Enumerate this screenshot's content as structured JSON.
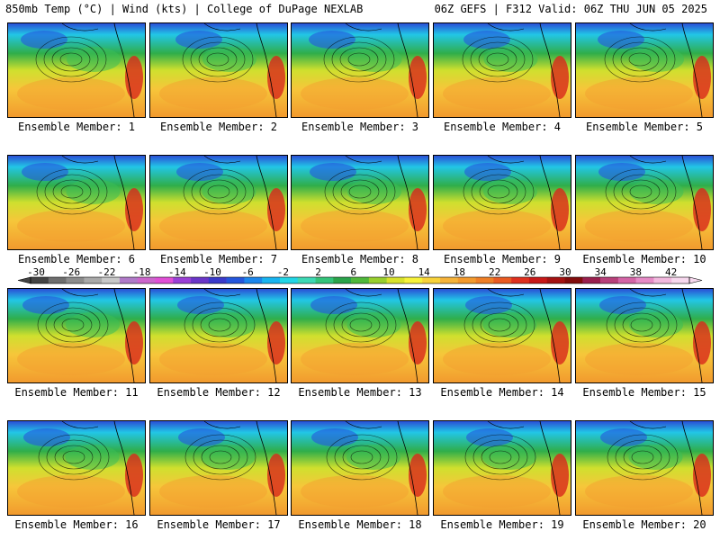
{
  "header": {
    "left": "850mb Temp (°C) | Wind (kts) | College of DuPage NEXLAB",
    "right": "06Z GEFS | F312 Valid: 06Z THU JUN 05 2025"
  },
  "panels": [
    {
      "label": "Ensemble Member: 1"
    },
    {
      "label": "Ensemble Member: 2"
    },
    {
      "label": "Ensemble Member: 3"
    },
    {
      "label": "Ensemble Member: 4"
    },
    {
      "label": "Ensemble Member: 5"
    },
    {
      "label": "Ensemble Member: 6"
    },
    {
      "label": "Ensemble Member: 7"
    },
    {
      "label": "Ensemble Member: 8"
    },
    {
      "label": "Ensemble Member: 9"
    },
    {
      "label": "Ensemble Member: 10"
    },
    {
      "label": "Ensemble Member: 11"
    },
    {
      "label": "Ensemble Member: 12"
    },
    {
      "label": "Ensemble Member: 13"
    },
    {
      "label": "Ensemble Member: 14"
    },
    {
      "label": "Ensemble Member: 15"
    },
    {
      "label": "Ensemble Member: 16"
    },
    {
      "label": "Ensemble Member: 17"
    },
    {
      "label": "Ensemble Member: 18"
    },
    {
      "label": "Ensemble Member: 19"
    },
    {
      "label": "Ensemble Member: 20"
    }
  ],
  "colorbar": {
    "ticks": [
      "-30",
      "-26",
      "-22",
      "-18",
      "-14",
      "-10",
      "-6",
      "-2",
      "2",
      "6",
      "10",
      "14",
      "18",
      "22",
      "26",
      "30",
      "34",
      "38",
      "42"
    ],
    "colors": [
      "#444444",
      "#6e6e6e",
      "#8c8c8c",
      "#a9a9a9",
      "#c8c8c8",
      "#b07ac8",
      "#cc66cc",
      "#e04fd6",
      "#9a3fd6",
      "#6a36c8",
      "#3a3acb",
      "#2456dd",
      "#1b86ec",
      "#18b4f0",
      "#22d6e6",
      "#3dd9b4",
      "#33c47a",
      "#2aa44a",
      "#4fb83a",
      "#98cf2e",
      "#d8e22c",
      "#f7f23a",
      "#f8d23a",
      "#f6b33a",
      "#f39a2e",
      "#ef7f27",
      "#ea5a22",
      "#e0301e",
      "#c81818",
      "#a51212",
      "#820c0c",
      "#9a1f4e",
      "#b8407a",
      "#d464a6",
      "#e68ac6",
      "#f2b8de",
      "#f7d8ee"
    ]
  }
}
